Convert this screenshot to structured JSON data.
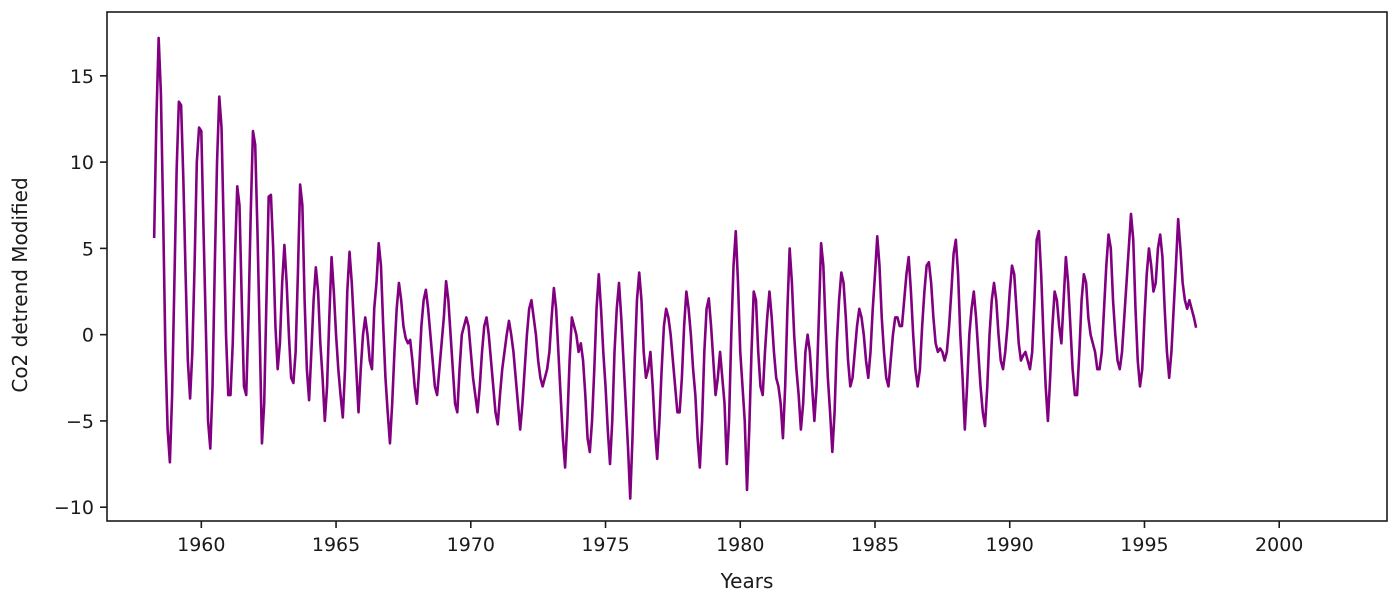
{
  "chart_data": {
    "type": "line",
    "title": "",
    "xlabel": "Years",
    "ylabel": "Co2 detrend Modified",
    "xlim": [
      1956.5,
      2004.0
    ],
    "ylim": [
      -10.8,
      18.7
    ],
    "xticks": [
      1960,
      1965,
      1970,
      1975,
      1980,
      1985,
      1990,
      1995,
      2000
    ],
    "xtick_labels": [
      "1960",
      "1965",
      "1970",
      "1975",
      "1980",
      "1985",
      "1990",
      "1995",
      "2000"
    ],
    "yticks": [
      -10,
      -5,
      0,
      5,
      10,
      15
    ],
    "ytick_labels": [
      "−10",
      "−5",
      "0",
      "5",
      "10",
      "15"
    ],
    "grid": false,
    "legend": "none",
    "series": [
      {
        "color": "#800080",
        "x_start": 1958.25,
        "x_step": 0.0833333,
        "values": [
          5.6,
          12.5,
          17.2,
          14.0,
          7.0,
          -1.0,
          -5.5,
          -7.4,
          -3.5,
          3.0,
          9.5,
          13.5,
          13.3,
          9.0,
          3.5,
          -1.5,
          -3.7,
          -1.0,
          4.0,
          10.0,
          12.0,
          11.8,
          6.0,
          0.5,
          -5.0,
          -6.6,
          -3.0,
          4.0,
          10.0,
          13.8,
          12.0,
          6.0,
          0.0,
          -3.5,
          -3.5,
          -0.5,
          4.5,
          8.6,
          7.5,
          2.0,
          -3.0,
          -3.5,
          1.0,
          7.0,
          11.8,
          11.0,
          6.0,
          0.0,
          -6.3,
          -4.0,
          2.0,
          8.0,
          8.1,
          5.0,
          0.5,
          -2.0,
          -0.5,
          3.0,
          5.2,
          3.0,
          0.0,
          -2.5,
          -2.8,
          -1.0,
          3.5,
          8.7,
          7.5,
          2.0,
          -2.0,
          -3.8,
          -1.0,
          2.0,
          3.9,
          2.5,
          -0.5,
          -2.5,
          -5.0,
          -3.0,
          1.0,
          4.5,
          2.5,
          0.0,
          -2.0,
          -3.5,
          -4.8,
          -2.0,
          2.5,
          4.8,
          3.0,
          0.5,
          -2.0,
          -4.5,
          -2.0,
          0.0,
          1.0,
          0.0,
          -1.5,
          -2.0,
          1.5,
          3.0,
          5.3,
          4.0,
          0.5,
          -2.5,
          -4.5,
          -6.3,
          -4.0,
          -1.0,
          1.5,
          3.0,
          2.0,
          0.5,
          -0.2,
          -0.5,
          -0.3,
          -1.5,
          -3.0,
          -4.0,
          -2.0,
          0.5,
          2.0,
          2.6,
          1.5,
          0.0,
          -1.5,
          -3.0,
          -3.5,
          -2.0,
          -0.5,
          1.0,
          3.1,
          2.0,
          0.0,
          -2.0,
          -4.0,
          -4.5,
          -2.0,
          0.0,
          0.5,
          1.0,
          0.5,
          -1.0,
          -2.5,
          -3.5,
          -4.5,
          -3.0,
          -1.0,
          0.5,
          1.0,
          0.0,
          -1.5,
          -3.0,
          -4.5,
          -5.2,
          -3.5,
          -2.0,
          -1.0,
          0.0,
          0.8,
          0.0,
          -1.0,
          -2.5,
          -4.0,
          -5.5,
          -4.0,
          -2.0,
          0.0,
          1.5,
          2.0,
          1.0,
          0.0,
          -1.5,
          -2.5,
          -3.0,
          -2.5,
          -2.0,
          -1.0,
          1.0,
          2.7,
          1.5,
          -1.0,
          -3.5,
          -6.0,
          -7.7,
          -5.0,
          -1.5,
          1.0,
          0.5,
          0.0,
          -1.0,
          -0.5,
          -1.5,
          -3.5,
          -6.0,
          -6.8,
          -5.0,
          -2.0,
          1.5,
          3.5,
          1.5,
          -1.0,
          -3.0,
          -5.5,
          -7.5,
          -5.0,
          -1.0,
          1.5,
          3.0,
          1.0,
          -1.5,
          -4.0,
          -6.5,
          -9.5,
          -6.0,
          -1.5,
          2.0,
          3.6,
          2.0,
          -1.0,
          -2.5,
          -2.0,
          -1.0,
          -3.0,
          -5.5,
          -7.2,
          -5.0,
          -2.0,
          0.5,
          1.5,
          1.0,
          0.0,
          -1.5,
          -3.0,
          -4.5,
          -4.5,
          -2.5,
          0.5,
          2.5,
          1.5,
          0.0,
          -2.0,
          -3.5,
          -6.0,
          -7.7,
          -5.0,
          -1.0,
          1.5,
          2.1,
          0.5,
          -1.5,
          -3.5,
          -2.5,
          -1.0,
          -2.5,
          -4.0,
          -7.5,
          -5.0,
          0.0,
          4.0,
          6.0,
          3.0,
          -1.0,
          -3.0,
          -5.0,
          -9.0,
          -5.5,
          -1.0,
          2.5,
          2.0,
          -1.0,
          -3.0,
          -3.5,
          -1.0,
          1.0,
          2.5,
          1.0,
          -1.0,
          -2.5,
          -3.0,
          -4.0,
          -6.0,
          -3.0,
          1.5,
          5.0,
          3.0,
          0.0,
          -2.0,
          -3.5,
          -5.5,
          -4.0,
          -1.0,
          0.0,
          -1.0,
          -3.0,
          -5.0,
          -3.0,
          1.0,
          5.3,
          4.0,
          0.5,
          -2.5,
          -4.5,
          -6.8,
          -4.5,
          -0.5,
          2.0,
          3.6,
          3.0,
          1.0,
          -1.5,
          -3.0,
          -2.5,
          -1.0,
          0.5,
          1.5,
          1.0,
          0.0,
          -1.5,
          -2.5,
          -1.0,
          1.5,
          3.5,
          5.7,
          4.0,
          1.0,
          -1.0,
          -2.5,
          -3.0,
          -1.5,
          0.0,
          1.0,
          1.0,
          0.5,
          0.5,
          2.0,
          3.5,
          4.5,
          2.5,
          0.0,
          -2.0,
          -3.0,
          -2.0,
          0.5,
          2.5,
          4.0,
          4.2,
          3.0,
          1.0,
          -0.5,
          -1.0,
          -0.8,
          -1.0,
          -1.5,
          -1.0,
          0.5,
          2.5,
          4.7,
          5.5,
          3.5,
          0.0,
          -2.5,
          -5.5,
          -3.0,
          0.0,
          1.5,
          2.5,
          1.0,
          -1.0,
          -3.0,
          -4.5,
          -5.3,
          -3.0,
          0.0,
          2.0,
          3.0,
          2.0,
          0.0,
          -1.5,
          -2.0,
          -1.0,
          0.5,
          2.5,
          4.0,
          3.5,
          1.5,
          -0.5,
          -1.5,
          -1.2,
          -1.0,
          -1.5,
          -2.0,
          -1.0,
          2.0,
          5.5,
          6.0,
          3.5,
          0.0,
          -3.0,
          -5.0,
          -2.5,
          0.5,
          2.5,
          2.0,
          0.5,
          -0.5,
          2.0,
          4.5,
          3.0,
          0.5,
          -2.0,
          -3.5,
          -3.5,
          -1.0,
          2.0,
          3.5,
          3.0,
          1.0,
          0.0,
          -0.5,
          -1.0,
          -2.0,
          -2.0,
          -1.0,
          1.5,
          4.0,
          5.8,
          5.0,
          2.0,
          0.0,
          -1.5,
          -2.0,
          -1.0,
          1.0,
          3.0,
          5.0,
          7.0,
          5.5,
          1.5,
          -1.5,
          -3.0,
          -2.0,
          1.0,
          3.5,
          5.0,
          4.0,
          2.5,
          3.0,
          5.0,
          5.8,
          4.5,
          1.5,
          -1.0,
          -2.5,
          -1.0,
          1.5,
          4.0,
          6.7,
          5.0,
          3.0,
          2.0,
          1.5,
          2.0,
          1.5,
          1.0,
          0.4
        ]
      }
    ]
  }
}
